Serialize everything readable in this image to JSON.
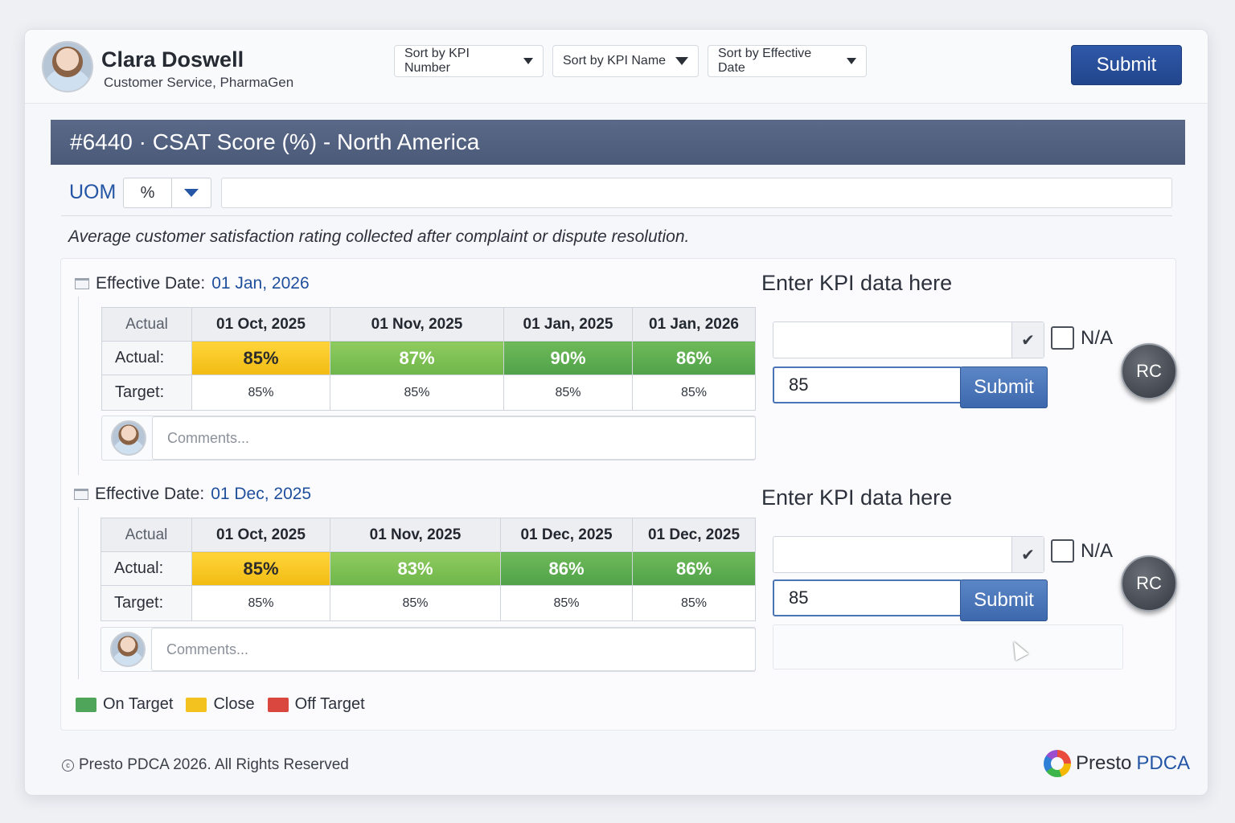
{
  "user": {
    "name": "Clara Doswell",
    "org": "Customer Service, PharmaGen"
  },
  "sort_buttons": [
    "Sort by KPI Number",
    "Sort by KPI Name",
    "Sort by Effective Date"
  ],
  "header": {
    "submit_label": "Submit"
  },
  "kpi": {
    "title": "#6440 · CSAT Score (%) - North America",
    "uom_label": "UOM",
    "uom_value": "%",
    "description": "Average customer satisfaction rating collected after complaint or dispute resolution."
  },
  "blocks": [
    {
      "effective_label": "Effective Date:",
      "effective_date": "01 Jan, 2026",
      "header_label": "Actual",
      "columns": [
        "01 Oct, 2025",
        "01 Nov, 2025",
        "01 Jan, 2025",
        "01 Jan, 2026"
      ],
      "actual_label": "Actual:",
      "actual": [
        "85%",
        "87%",
        "90%",
        "86%"
      ],
      "actual_status": [
        "close",
        "on",
        "on",
        "on"
      ],
      "target_label": "Target:",
      "target": [
        "85%",
        "85%",
        "85%",
        "85%"
      ],
      "comments_placeholder": "Comments...",
      "entry_title": "Enter KPI data here",
      "entry_value": "85",
      "na_label": "N/A",
      "submit_label": "Submit",
      "rc_label": "RC"
    },
    {
      "effective_label": "Effective Date:",
      "effective_date": "01 Dec, 2025",
      "header_label": "Actual",
      "columns": [
        "01 Oct, 2025",
        "01 Nov, 2025",
        "01 Dec, 2025",
        "01 Dec, 2025"
      ],
      "actual_label": "Actual:",
      "actual": [
        "85%",
        "83%",
        "86%",
        "86%"
      ],
      "actual_status": [
        "close",
        "on",
        "on",
        "on"
      ],
      "target_label": "Target:",
      "target": [
        "85%",
        "85%",
        "85%",
        "85%"
      ],
      "comments_placeholder": "Comments...",
      "entry_title": "Enter KPI data here",
      "entry_value": "85",
      "na_label": "N/A",
      "submit_label": "Submit",
      "rc_label": "RC"
    }
  ],
  "legend": [
    {
      "label": "On Target",
      "color": "#4fa65a"
    },
    {
      "label": "Close",
      "color": "#f3c21f"
    },
    {
      "label": "Off Target",
      "color": "#d9473e"
    }
  ],
  "footer": {
    "copyright": "Presto PDCA 2026. All Rights Reserved",
    "brand_1": "Presto",
    "brand_2": "PDCA"
  },
  "colors": {
    "accent": "#2456a5",
    "title_bar": "#526180",
    "on_target": "#4fa149",
    "close": "#f1bc12"
  }
}
